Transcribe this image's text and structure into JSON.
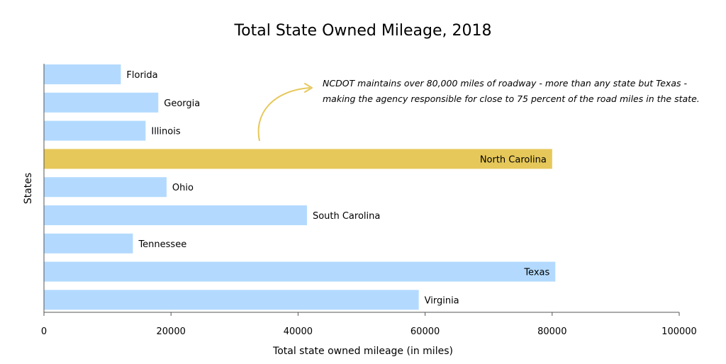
{
  "chart_data": {
    "type": "bar",
    "orientation": "horizontal",
    "title": "Total State Owned Mileage, 2018",
    "xlabel": "Total state owned mileage (in miles)",
    "ylabel": "States",
    "xlim": [
      0,
      100000
    ],
    "xticks": [
      "0",
      "20000",
      "40000",
      "60000",
      "80000",
      "100000"
    ],
    "grid": false,
    "categories": [
      "Florida",
      "Georgia",
      "Illinois",
      "North Carolina",
      "Ohio",
      "South Carolina",
      "Tennessee",
      "Texas",
      "Virginia"
    ],
    "values": [
      12100,
      18000,
      16000,
      80000,
      19300,
      41400,
      14000,
      80500,
      59000
    ],
    "highlight": "North Carolina",
    "colors": {
      "default": "#b3dafe",
      "highlight": "#e6c85a",
      "annotation_arrow": "#e6c85a"
    },
    "annotation": {
      "lines": [
        "NCDOT maintains over 80,000 miles of roadway - more than any state but Texas -",
        "making the agency responsible for close to 75 percent of the road miles in the state."
      ]
    }
  }
}
